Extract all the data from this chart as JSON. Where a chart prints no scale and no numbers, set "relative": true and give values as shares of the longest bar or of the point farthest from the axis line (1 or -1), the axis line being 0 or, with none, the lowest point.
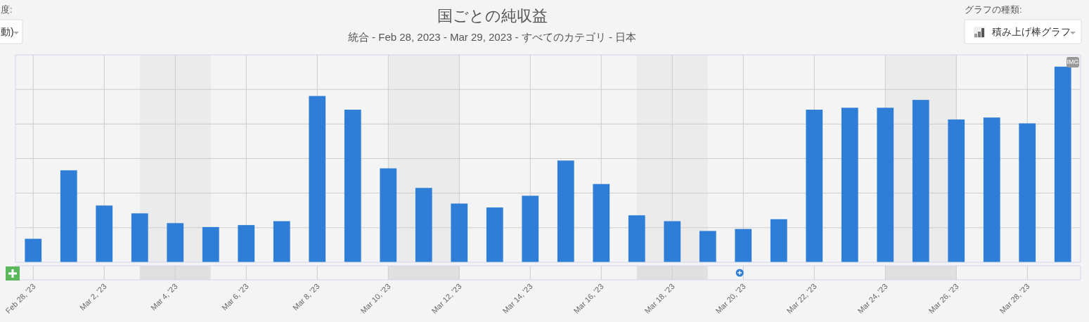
{
  "chart_data": {
    "type": "bar",
    "title": "国ごとの純収益",
    "subtitle": "統合 - Feb 28, 2023 - Mar 29, 2023 - すべてのカテゴリ - 日本",
    "x": [
      "2023-02-28",
      "2023-03-01",
      "2023-03-02",
      "2023-03-03",
      "2023-03-04",
      "2023-03-05",
      "2023-03-06",
      "2023-03-07",
      "2023-03-08",
      "2023-03-09",
      "2023-03-10",
      "2023-03-11",
      "2023-03-12",
      "2023-03-13",
      "2023-03-14",
      "2023-03-15",
      "2023-03-16",
      "2023-03-17",
      "2023-03-18",
      "2023-03-19",
      "2023-03-20",
      "2023-03-21",
      "2023-03-22",
      "2023-03-23",
      "2023-03-24",
      "2023-03-25",
      "2023-03-26",
      "2023-03-27",
      "2023-03-28",
      "2023-03-29"
    ],
    "values": [
      0.12,
      0.47,
      0.29,
      0.25,
      0.2,
      0.18,
      0.19,
      0.21,
      0.85,
      0.78,
      0.48,
      0.38,
      0.3,
      0.28,
      0.34,
      0.52,
      0.4,
      0.24,
      0.21,
      0.16,
      0.17,
      0.22,
      0.78,
      0.79,
      0.79,
      0.83,
      0.73,
      0.74,
      0.71,
      1
    ],
    "relative": true,
    "color": "#2e7dd7",
    "xlim": [
      "2023-02-27T12:00",
      "2023-03-29T12:00"
    ],
    "xticks": [
      {
        "value": "2023-02-28",
        "label": "Feb 28, '23"
      },
      {
        "value": "2023-03-02",
        "label": "Mar 2, '23"
      },
      {
        "value": "2023-03-04",
        "label": "Mar 4, '23"
      },
      {
        "value": "2023-03-06",
        "label": "Mar 6, '23"
      },
      {
        "value": "2023-03-08",
        "label": "Mar 8, '23"
      },
      {
        "value": "2023-03-10",
        "label": "Mar 10, '23"
      },
      {
        "value": "2023-03-12",
        "label": "Mar 12, '23"
      },
      {
        "value": "2023-03-14",
        "label": "Mar 14, '23"
      },
      {
        "value": "2023-03-16",
        "label": "Mar 16, '23"
      },
      {
        "value": "2023-03-18",
        "label": "Mar 18, '23"
      },
      {
        "value": "2023-03-20",
        "label": "Mar 20, '23"
      },
      {
        "value": "2023-03-22",
        "label": "Mar 22, '23"
      },
      {
        "value": "2023-03-24",
        "label": "Mar 24, '23"
      },
      {
        "value": "2023-03-26",
        "label": "Mar 26, '23"
      },
      {
        "value": "2023-03-28",
        "label": "Mar 28, '23"
      }
    ],
    "bands": [
      {
        "axis": "x",
        "from": "2023-03-03",
        "to": "2023-03-05",
        "color": "#ebebeb"
      },
      {
        "axis": "x",
        "from": "2023-03-10",
        "to": "2023-03-12",
        "color": "#ebebeb"
      },
      {
        "axis": "x",
        "from": "2023-03-17",
        "to": "2023-03-19",
        "color": "#ebebeb"
      },
      {
        "axis": "x",
        "from": "2023-03-24",
        "to": "2023-03-26",
        "color": "#ebebeb"
      }
    ],
    "grid": true,
    "annotations": [
      "度:",
      "動)",
      "グラフの種類:",
      "積み上げ棒グラフ",
      "IMG"
    ]
  }
}
